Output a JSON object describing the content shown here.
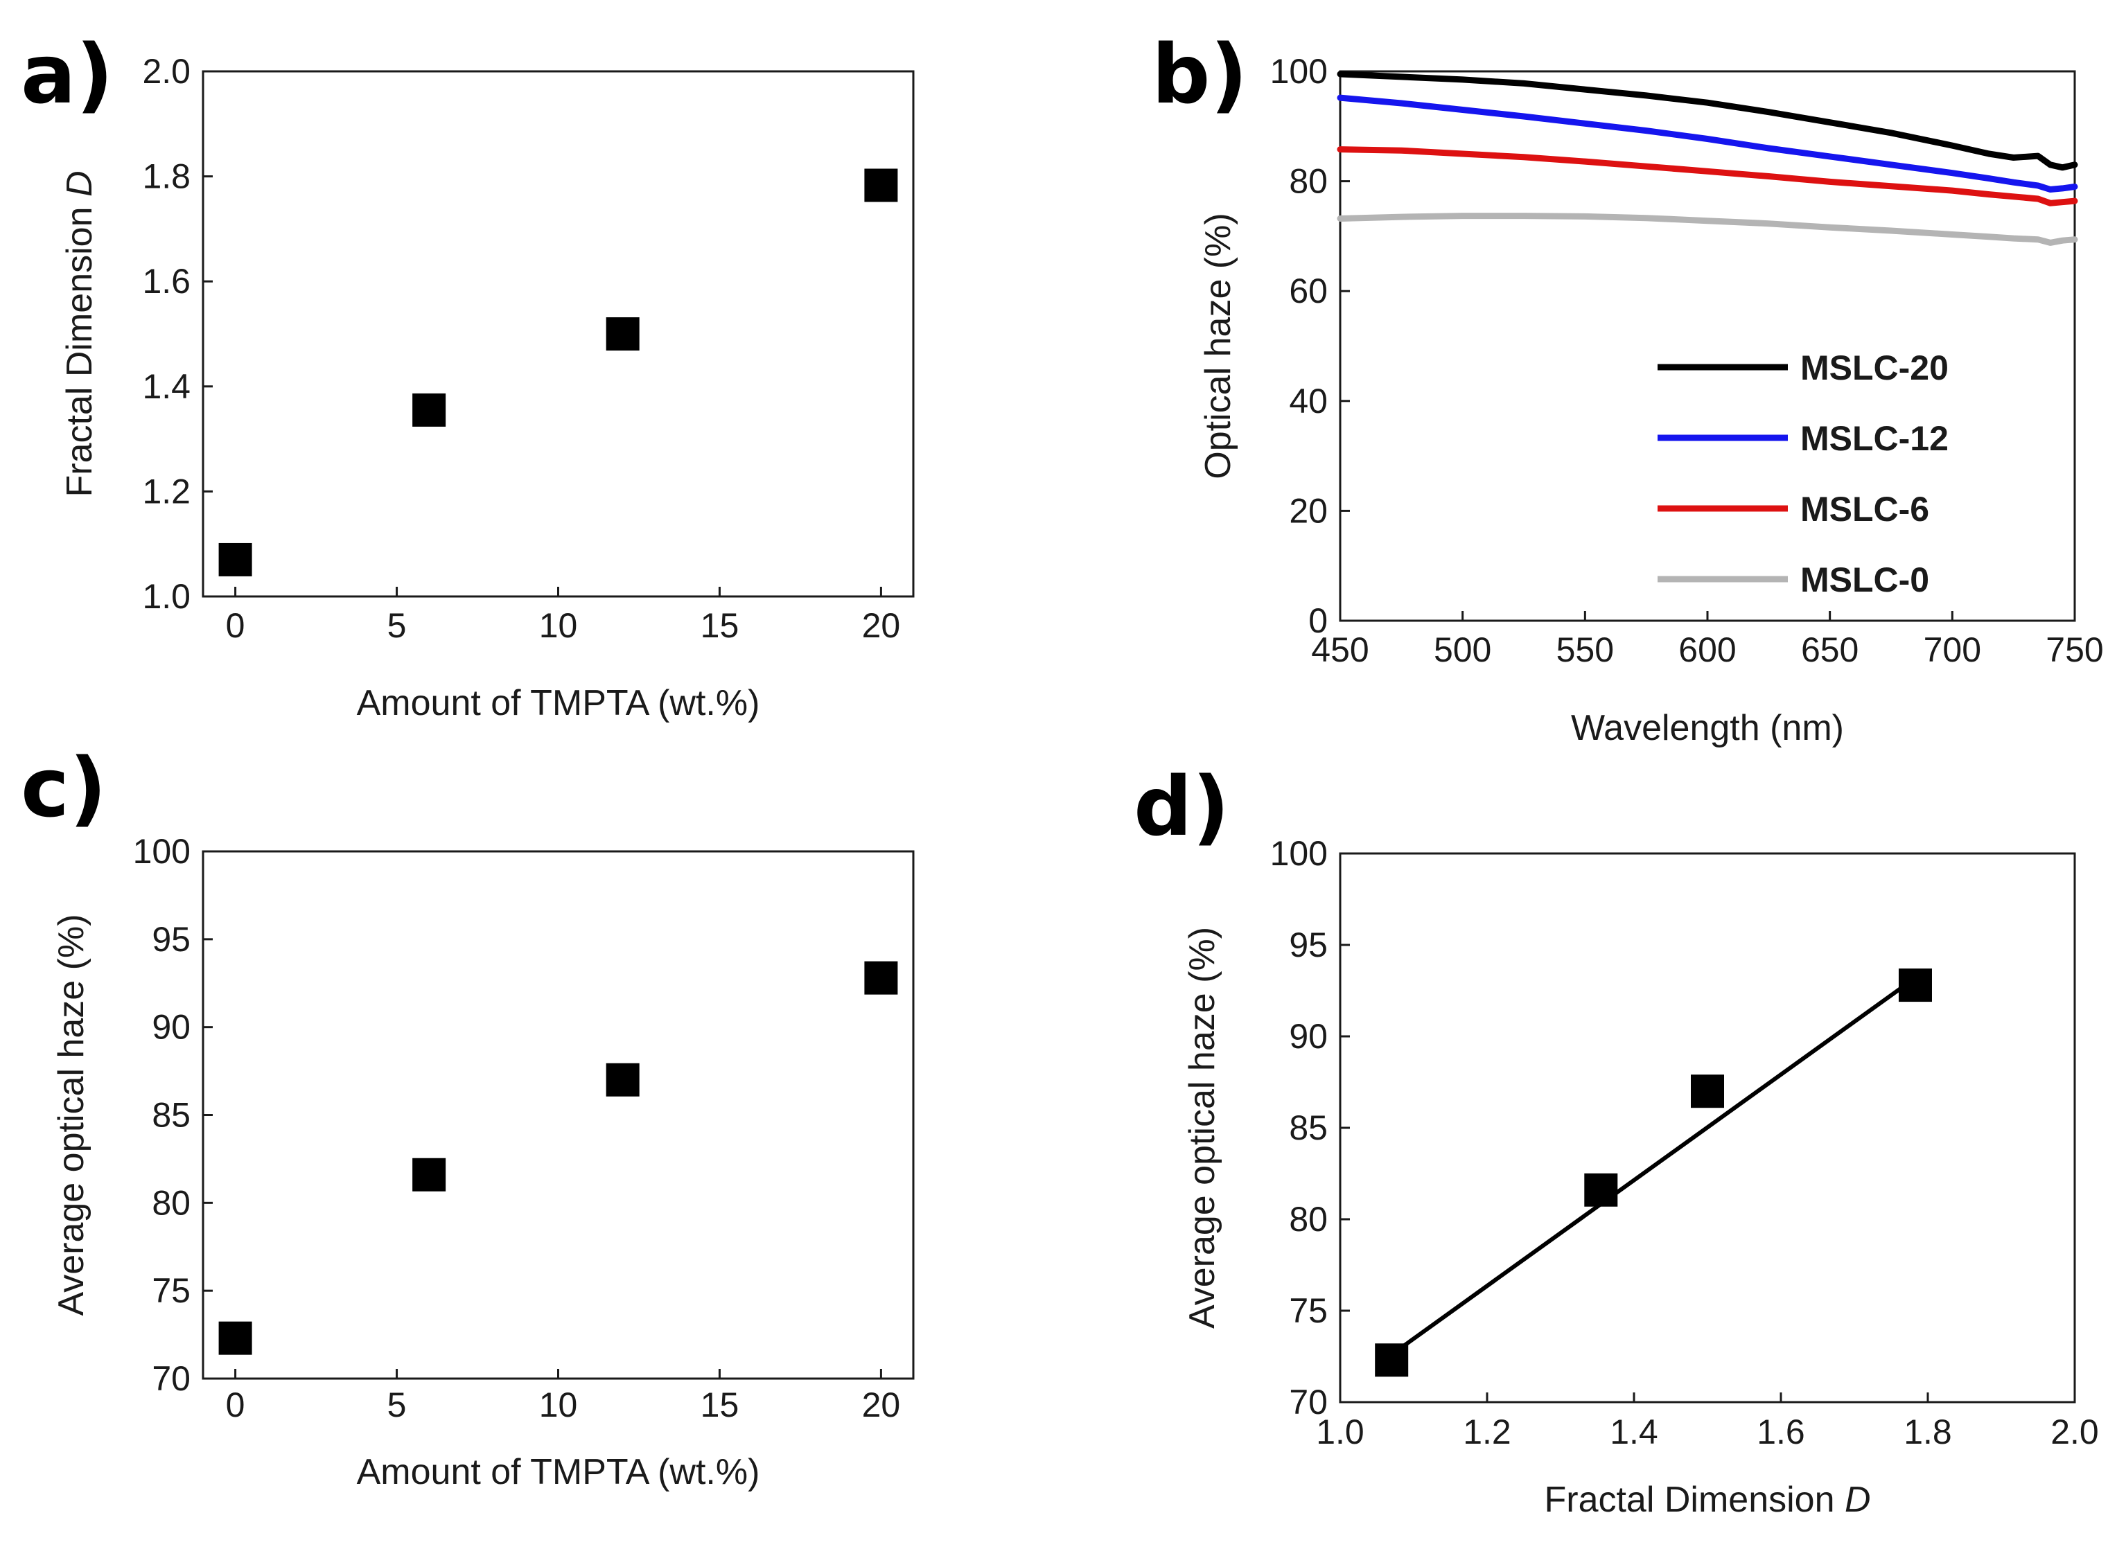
{
  "chart_data": [
    {
      "panel": "a)",
      "type": "scatter",
      "xlabel": "Amount of TMPTA (wt.%)",
      "ylabel": "Fractal Dimension ",
      "ylabel_italic": "D",
      "xlim": [
        -1,
        21
      ],
      "ylim": [
        1.0,
        2.0
      ],
      "xticks": [
        "0",
        "5",
        "10",
        "15",
        "20"
      ],
      "yticks": [
        "1.0",
        "1.2",
        "1.4",
        "1.6",
        "1.8",
        "2.0"
      ],
      "points": [
        {
          "x": 0,
          "y": 1.07
        },
        {
          "x": 6,
          "y": 1.355
        },
        {
          "x": 12,
          "y": 1.5
        },
        {
          "x": 20,
          "y": 1.783
        }
      ],
      "marker": "square",
      "color": "#000000"
    },
    {
      "panel": "b)",
      "type": "line",
      "xlabel": "Wavelength (nm)",
      "ylabel": "Optical haze (%)",
      "xlim": [
        450,
        750
      ],
      "ylim": [
        0,
        100
      ],
      "xticks": [
        "450",
        "500",
        "550",
        "600",
        "650",
        "700",
        "750"
      ],
      "yticks": [
        "0",
        "20",
        "40",
        "60",
        "80",
        "100"
      ],
      "legend_position": "lower-right",
      "series": [
        {
          "name": "MSLC-20",
          "color": "#000000",
          "x": [
            450,
            475,
            500,
            525,
            550,
            575,
            600,
            625,
            650,
            675,
            700,
            715,
            725,
            735,
            740,
            745,
            750
          ],
          "y": [
            99.5,
            99.0,
            98.5,
            97.8,
            96.7,
            95.6,
            94.3,
            92.6,
            90.7,
            88.8,
            86.5,
            85.0,
            84.3,
            84.6,
            83.0,
            82.5,
            83.0
          ]
        },
        {
          "name": "MSLC-12",
          "color": "#1515ee",
          "x": [
            450,
            475,
            500,
            525,
            550,
            575,
            600,
            625,
            650,
            675,
            700,
            715,
            725,
            735,
            740,
            745,
            750
          ],
          "y": [
            95.2,
            94.2,
            93.0,
            91.8,
            90.5,
            89.2,
            87.7,
            86.0,
            84.5,
            83.0,
            81.5,
            80.5,
            79.8,
            79.2,
            78.5,
            78.7,
            79.0
          ]
        },
        {
          "name": "MSLC-6",
          "color": "#dd1111",
          "x": [
            450,
            475,
            500,
            525,
            550,
            575,
            600,
            625,
            650,
            675,
            700,
            715,
            725,
            735,
            740,
            745,
            750
          ],
          "y": [
            85.8,
            85.6,
            85.0,
            84.4,
            83.6,
            82.7,
            81.8,
            80.9,
            79.9,
            79.1,
            78.3,
            77.6,
            77.2,
            76.8,
            76.0,
            76.2,
            76.4
          ]
        },
        {
          "name": "MSLC-0",
          "color": "#b4b4b4",
          "x": [
            450,
            475,
            500,
            525,
            550,
            575,
            600,
            625,
            650,
            675,
            700,
            715,
            725,
            735,
            740,
            745,
            750
          ],
          "y": [
            73.2,
            73.5,
            73.7,
            73.7,
            73.6,
            73.3,
            72.8,
            72.3,
            71.6,
            71.0,
            70.3,
            69.9,
            69.6,
            69.4,
            68.8,
            69.2,
            69.4
          ]
        }
      ]
    },
    {
      "panel": "c)",
      "type": "scatter",
      "xlabel": "Amount of TMPTA (wt.%)",
      "ylabel": "Average optical haze (%)",
      "xlim": [
        -1,
        21
      ],
      "ylim": [
        70,
        100
      ],
      "xticks": [
        "0",
        "5",
        "10",
        "15",
        "20"
      ],
      "yticks": [
        "70",
        "75",
        "80",
        "85",
        "90",
        "95",
        "100"
      ],
      "points": [
        {
          "x": 0,
          "y": 72.3
        },
        {
          "x": 6,
          "y": 81.6
        },
        {
          "x": 12,
          "y": 87.0
        },
        {
          "x": 20,
          "y": 92.8
        }
      ],
      "marker": "square",
      "color": "#000000"
    },
    {
      "panel": "d)",
      "type": "scatter",
      "xlabel": "Fractal Dimension ",
      "xlabel_italic": "D",
      "ylabel": "Average optical haze (%)",
      "xlim": [
        1.0,
        2.0
      ],
      "ylim": [
        70,
        100
      ],
      "xticks": [
        "1.0",
        "1.2",
        "1.4",
        "1.6",
        "1.8",
        "2.0"
      ],
      "yticks": [
        "70",
        "75",
        "80",
        "85",
        "90",
        "95",
        "100"
      ],
      "points": [
        {
          "x": 1.07,
          "y": 72.3
        },
        {
          "x": 1.355,
          "y": 81.6
        },
        {
          "x": 1.5,
          "y": 87.0
        },
        {
          "x": 1.783,
          "y": 92.8
        }
      ],
      "fit_line": {
        "x": [
          1.07,
          1.783
        ],
        "y": [
          72.6,
          93.2
        ]
      },
      "marker": "square",
      "color": "#000000"
    }
  ]
}
